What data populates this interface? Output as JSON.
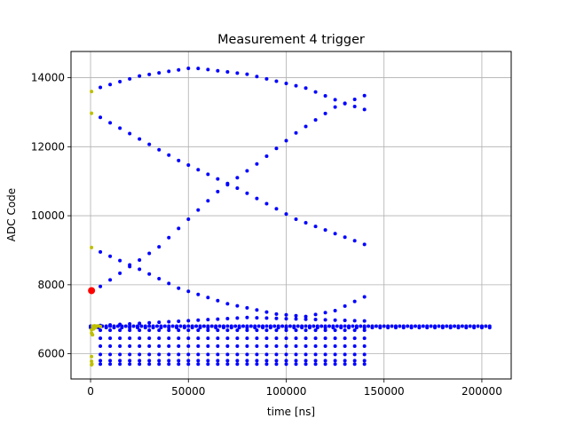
{
  "chart_data": {
    "type": "scatter",
    "title": "Measurement 4 trigger",
    "xlabel": "time [ns]",
    "ylabel": "ADC Code",
    "xlim": [
      -10000,
      215000
    ],
    "ylim": [
      5270,
      14760
    ],
    "x_ticks": [
      0,
      50000,
      100000,
      150000,
      200000
    ],
    "x_tick_labels": [
      "0",
      "50000",
      "100000",
      "150000",
      "200000"
    ],
    "y_ticks": [
      6000,
      8000,
      10000,
      12000,
      14000
    ],
    "y_tick_labels": [
      "6000",
      "8000",
      "10000",
      "12000",
      "14000"
    ],
    "grid": true,
    "series": [
      {
        "color": "#0000ff",
        "marker_size": 4,
        "curves": [
          {
            "x_start": 5000,
            "x_end": 140000,
            "step": 5000,
            "y_points": [
              [
                5000,
                13720
              ],
              [
                25000,
                14050
              ],
              [
                52000,
                14290
              ],
              [
                80000,
                14100
              ],
              [
                110000,
                13700
              ],
              [
                130000,
                13250
              ],
              [
                140000,
                13080
              ]
            ]
          },
          {
            "x_start": 5000,
            "x_end": 140000,
            "step": 5000,
            "y_points": [
              [
                5000,
                12850
              ],
              [
                45000,
                11600
              ],
              [
                75000,
                10800
              ],
              [
                105000,
                9900
              ],
              [
                140000,
                9170
              ]
            ]
          },
          {
            "x_start": 5000,
            "x_end": 140000,
            "step": 5000,
            "y_points": [
              [
                5000,
                7950
              ],
              [
                35000,
                9100
              ],
              [
                65000,
                10700
              ],
              [
                85000,
                11500
              ],
              [
                105000,
                12400
              ],
              [
                125000,
                13150
              ],
              [
                140000,
                13480
              ]
            ]
          },
          {
            "x_start": 5000,
            "x_end": 140000,
            "step": 5000,
            "y_points": [
              [
                5000,
                8950
              ],
              [
                25000,
                8450
              ],
              [
                45000,
                7900
              ],
              [
                70000,
                7450
              ],
              [
                95000,
                7150
              ],
              [
                110000,
                7080
              ],
              [
                125000,
                7250
              ],
              [
                140000,
                7650
              ]
            ]
          },
          {
            "x_start": 5000,
            "x_end": 140000,
            "step": 5000,
            "y_points": [
              [
                5000,
                6820
              ],
              [
                80000,
                7050
              ],
              [
                140000,
                6950
              ]
            ]
          },
          {
            "x_start": 5000,
            "x_end": 140000,
            "step": 5000,
            "y_points": [
              [
                5000,
                6680
              ],
              [
                140000,
                6680
              ]
            ]
          },
          {
            "x_start": 5000,
            "x_end": 140000,
            "step": 5000,
            "y_points": [
              [
                5000,
                6450
              ],
              [
                140000,
                6450
              ]
            ]
          },
          {
            "x_start": 5000,
            "x_end": 140000,
            "step": 5000,
            "y_points": [
              [
                5000,
                6220
              ],
              [
                140000,
                6220
              ]
            ]
          },
          {
            "x_start": 5000,
            "x_end": 140000,
            "step": 5000,
            "y_points": [
              [
                5000,
                5980
              ],
              [
                140000,
                5980
              ]
            ]
          },
          {
            "x_start": 5000,
            "x_end": 140000,
            "step": 5000,
            "y_points": [
              [
                5000,
                5800
              ],
              [
                140000,
                5800
              ]
            ]
          },
          {
            "x_start": 5000,
            "x_end": 140000,
            "step": 5000,
            "y_points": [
              [
                5000,
                5700
              ],
              [
                140000,
                5700
              ]
            ]
          },
          {
            "x_start": 0,
            "x_end": 204000,
            "step": 2000,
            "y_points": [
              [
                0,
                6800
              ],
              [
                204000,
                6800
              ]
            ]
          },
          {
            "x_start": 0,
            "x_end": 204000,
            "step": 4000,
            "y_points": [
              [
                0,
                6760
              ],
              [
                204000,
                6760
              ]
            ]
          }
        ]
      },
      {
        "color": "#bfbf00",
        "marker_size": 4,
        "points": [
          [
            500,
            13600
          ],
          [
            500,
            12970
          ],
          [
            500,
            9080
          ],
          [
            1000,
            6800
          ],
          [
            2000,
            6810
          ],
          [
            3000,
            6800
          ],
          [
            4000,
            6810
          ],
          [
            5000,
            6790
          ],
          [
            500,
            6700
          ],
          [
            1500,
            6720
          ],
          [
            500,
            6600
          ],
          [
            1000,
            6550
          ],
          [
            500,
            5920
          ],
          [
            500,
            5780
          ],
          [
            700,
            5700
          ],
          [
            500,
            5680
          ],
          [
            1500,
            6780
          ],
          [
            2500,
            6760
          ]
        ]
      },
      {
        "color": "#ff0000",
        "marker_size": 8,
        "points": [
          [
            500,
            7830
          ]
        ]
      }
    ]
  }
}
